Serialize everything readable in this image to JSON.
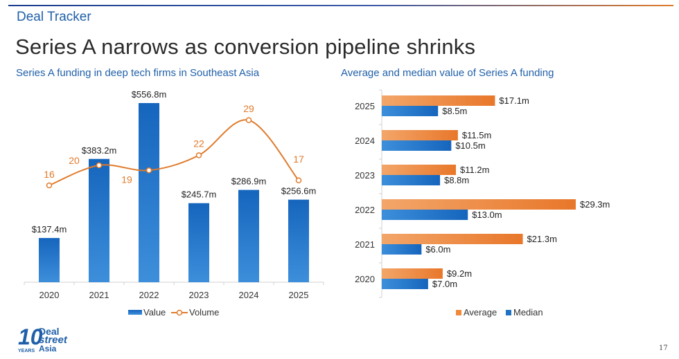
{
  "header": {
    "brand": "Deal Tracker",
    "headline": "Series A narrows as conversion pipeline shrinks"
  },
  "logo": {
    "number": "10",
    "line1": "Deal",
    "line2": "street",
    "line3": "Asia",
    "tag": "YEARS"
  },
  "page_number": "17",
  "chart_data": [
    {
      "type": "bar",
      "title": "Series A funding in deep tech firms in Southeast Asia",
      "categories": [
        "2020",
        "2021",
        "2022",
        "2023",
        "2024",
        "2025"
      ],
      "series": [
        {
          "name": "Value",
          "kind": "bar",
          "values": [
            137.4,
            383.2,
            556.8,
            245.7,
            286.9,
            256.6
          ],
          "labels": [
            "$137.4m",
            "$383.2m",
            "$556.8m",
            "$245.7m",
            "$286.9m",
            "$256.6m"
          ],
          "color": "#1f73c2"
        },
        {
          "name": "Volume",
          "kind": "line",
          "smooth": true,
          "values": [
            16,
            20,
            19,
            22,
            29,
            17
          ],
          "labels": [
            "16",
            "20",
            "19",
            "22",
            "29",
            "17"
          ],
          "color": "#e07a2a"
        }
      ],
      "legend": "bottom",
      "grid": false
    },
    {
      "type": "bar",
      "orientation": "horizontal",
      "title": "Average and median value of Series A funding",
      "categories": [
        "2025",
        "2024",
        "2023",
        "2022",
        "2021",
        "2020"
      ],
      "series": [
        {
          "name": "Average",
          "values": [
            17.1,
            11.5,
            11.2,
            29.3,
            21.3,
            9.2
          ],
          "labels": [
            "$17.1m",
            "$11.5m",
            "$11.2m",
            "$29.3m",
            "$21.3m",
            "$9.2m"
          ],
          "color": "#ef8a3c"
        },
        {
          "name": "Median",
          "values": [
            8.5,
            10.5,
            8.8,
            13.0,
            6.0,
            7.0
          ],
          "labels": [
            "$8.5m",
            "$10.5m",
            "$8.8m",
            "$13.0m",
            "$6.0m",
            "$7.0m"
          ],
          "color": "#1f73c2"
        }
      ],
      "legend": "bottom",
      "grid": false
    }
  ]
}
